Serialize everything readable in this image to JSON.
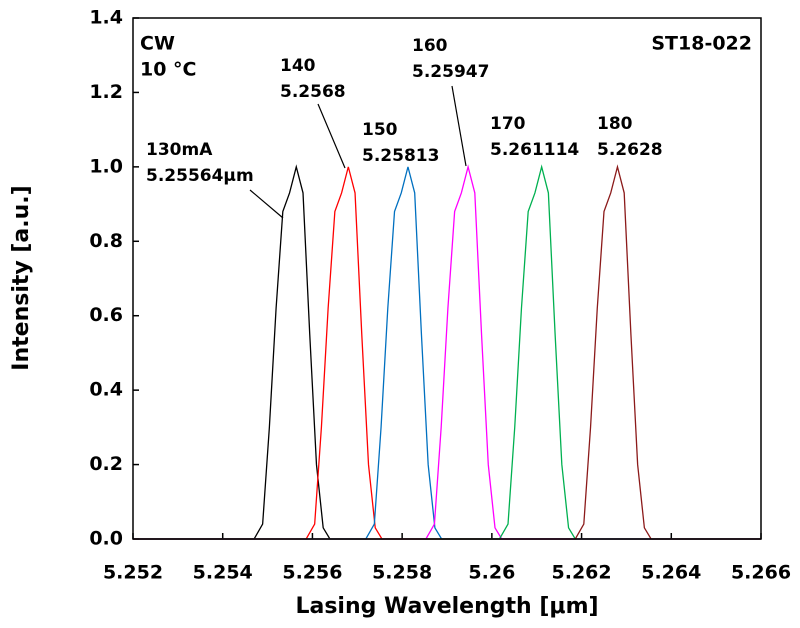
{
  "chart_data": {
    "type": "line",
    "x_label": "Lasing Wavelength [μm]",
    "y_label": "Intensity [a.u.]",
    "conditions": [
      "CW",
      "10 °C"
    ],
    "sample": "ST18-022",
    "xlim": [
      5.252,
      5.266
    ],
    "xticks": [
      5.252,
      5.254,
      5.256,
      5.258,
      5.26,
      5.262,
      5.264,
      5.266
    ],
    "ylim": [
      0,
      1.4
    ],
    "yticks": [
      {
        "value": 0,
        "label": "0.0"
      },
      0.2,
      0.4,
      0.6,
      0.8,
      {
        "value": 1,
        "label": "1.0"
      },
      1.2,
      1.4
    ],
    "series": [
      {
        "color": "#000000",
        "x": [
          5.252,
          5.2547,
          5.25489,
          5.25504,
          5.25519,
          5.25534,
          5.25549,
          5.25564,
          5.25579,
          5.25594,
          5.25609,
          5.25624,
          5.25639,
          5.266
        ],
        "values": [
          0,
          0,
          0.04,
          0.3,
          0.62,
          0.88,
          0.93,
          1.0,
          0.93,
          0.55,
          0.2,
          0.03,
          0,
          0
        ]
      },
      {
        "color": "#ff0000",
        "x": [
          5.252,
          5.25586,
          5.25605,
          5.2562,
          5.25635,
          5.2565,
          5.25665,
          5.2568,
          5.25695,
          5.2571,
          5.25725,
          5.2574,
          5.25755,
          5.266
        ],
        "values": [
          0,
          0,
          0.04,
          0.3,
          0.62,
          0.88,
          0.93,
          1.0,
          0.93,
          0.55,
          0.2,
          0.03,
          0,
          0
        ]
      },
      {
        "color": "#0070c0",
        "x": [
          5.252,
          5.25719,
          5.25738,
          5.25753,
          5.25768,
          5.25783,
          5.25798,
          5.25813,
          5.25828,
          5.25843,
          5.25858,
          5.25873,
          5.25888,
          5.266
        ],
        "values": [
          0,
          0,
          0.04,
          0.3,
          0.62,
          0.88,
          0.93,
          1.0,
          0.93,
          0.55,
          0.2,
          0.03,
          0,
          0
        ]
      },
      {
        "color": "#ff00ff",
        "x": [
          5.252,
          5.25853,
          5.25872,
          5.25887,
          5.25902,
          5.25917,
          5.25932,
          5.25947,
          5.25962,
          5.25977,
          5.25992,
          5.26007,
          5.26022,
          5.266
        ],
        "values": [
          0,
          0,
          0.04,
          0.3,
          0.62,
          0.88,
          0.93,
          1.0,
          0.93,
          0.55,
          0.2,
          0.03,
          0,
          0
        ]
      },
      {
        "color": "#00b050",
        "x": [
          5.252,
          5.26017,
          5.26036,
          5.26051,
          5.26066,
          5.26081,
          5.26096,
          5.26111,
          5.26126,
          5.26141,
          5.26156,
          5.26171,
          5.26186,
          5.266
        ],
        "values": [
          0,
          0,
          0.04,
          0.3,
          0.62,
          0.88,
          0.93,
          1.0,
          0.93,
          0.55,
          0.2,
          0.03,
          0,
          0
        ]
      },
      {
        "color": "#8b1a1a",
        "x": [
          5.252,
          5.26186,
          5.26205,
          5.2622,
          5.26235,
          5.2625,
          5.26265,
          5.2628,
          5.26295,
          5.2631,
          5.26325,
          5.2634,
          5.26355,
          5.266
        ],
        "values": [
          0,
          0,
          0.04,
          0.3,
          0.62,
          0.88,
          0.93,
          1.0,
          0.93,
          0.55,
          0.2,
          0.03,
          0,
          0
        ]
      }
    ],
    "annotations": [
      [
        "130mA",
        "5.25564μm"
      ],
      [
        "140",
        "5.2568"
      ],
      [
        "150",
        "5.25813"
      ],
      [
        "160",
        "5.25947"
      ],
      [
        "170",
        "5.261114"
      ],
      [
        "180",
        "5.2628"
      ]
    ]
  }
}
